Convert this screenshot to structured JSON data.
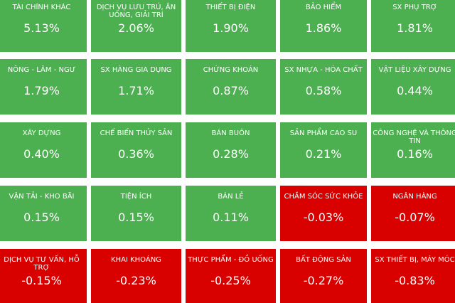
{
  "tiles": [
    {
      "name": "TÀI CHÍNH KHÁC",
      "value": "5.13%",
      "trend": "up"
    },
    {
      "name": "DỊCH VỤ LƯU TRÚ, ĂN UỐNG, GIẢI TRÍ",
      "value": "2.06%",
      "trend": "up"
    },
    {
      "name": "THIẾT BỊ ĐIỆN",
      "value": "1.90%",
      "trend": "up"
    },
    {
      "name": "BẢO HIỂM",
      "value": "1.86%",
      "trend": "up"
    },
    {
      "name": "SX PHỤ TRỢ",
      "value": "1.81%",
      "trend": "up"
    },
    {
      "name": "NÔNG - LÂM - NGƯ",
      "value": "1.79%",
      "trend": "up"
    },
    {
      "name": "SX HÀNG GIA DỤNG",
      "value": "1.71%",
      "trend": "up"
    },
    {
      "name": "CHỨNG KHOÁN",
      "value": "0.87%",
      "trend": "up"
    },
    {
      "name": "SX NHỰA - HÓA CHẤT",
      "value": "0.58%",
      "trend": "up"
    },
    {
      "name": "VẬT LIỆU XÂY DỰNG",
      "value": "0.44%",
      "trend": "up"
    },
    {
      "name": "XÂY DỰNG",
      "value": "0.40%",
      "trend": "up"
    },
    {
      "name": "CHẾ BIẾN THỦY SẢN",
      "value": "0.36%",
      "trend": "up"
    },
    {
      "name": "BÁN BUÔN",
      "value": "0.28%",
      "trend": "up"
    },
    {
      "name": "SẢN PHẨM CAO SU",
      "value": "0.21%",
      "trend": "up"
    },
    {
      "name": "CÔNG NGHỆ VÀ THÔNG TIN",
      "value": "0.16%",
      "trend": "up"
    },
    {
      "name": "VẬN TẢI - KHO BÃI",
      "value": "0.15%",
      "trend": "up"
    },
    {
      "name": "TIỆN ÍCH",
      "value": "0.15%",
      "trend": "up"
    },
    {
      "name": "BÁN LẺ",
      "value": "0.11%",
      "trend": "up"
    },
    {
      "name": "CHĂM SÓC SỨC KHỎE",
      "value": "-0.03%",
      "trend": "down"
    },
    {
      "name": "NGÂN HÀNG",
      "value": "-0.07%",
      "trend": "down"
    },
    {
      "name": "DỊCH VỤ TƯ VẤN, HỖ TRỢ",
      "value": "-0.15%",
      "trend": "down"
    },
    {
      "name": "KHAI KHOÁNG",
      "value": "-0.23%",
      "trend": "down"
    },
    {
      "name": "THỰC PHẨM - ĐỒ UỐNG",
      "value": "-0.25%",
      "trend": "down"
    },
    {
      "name": "BẤT ĐỘNG SẢN",
      "value": "-0.27%",
      "trend": "down"
    },
    {
      "name": "SX THIẾT BỊ, MÁY MÓC",
      "value": "-0.83%",
      "trend": "down"
    }
  ],
  "colors": {
    "up": "#4caf50",
    "down": "#d90000"
  }
}
